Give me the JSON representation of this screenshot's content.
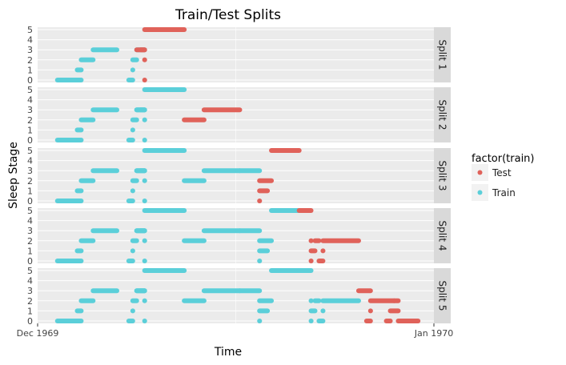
{
  "chart_data": {
    "type": "scatter",
    "title": "Train/Test Splits",
    "xlabel": "Time",
    "ylabel": "Sleep Stage",
    "x_ticks": [
      "Dec 1969",
      "Jan 1970"
    ],
    "y_ticks": [
      "0",
      "1",
      "2",
      "3",
      "4",
      "5"
    ],
    "ylim": [
      0,
      5
    ],
    "grid": true,
    "legend_position": "right",
    "legend_title": "factor(train)",
    "legend_entries": [
      "Test",
      "Train"
    ],
    "colors": {
      "Test": "#E0625A",
      "Train": "#5BCFD9",
      "panel_bg": "#EBEBEB",
      "strip_bg": "#D9D9D9"
    },
    "facets": [
      "Split 1",
      "Split 2",
      "Split 3",
      "Split 4",
      "Split 5"
    ],
    "base_segments": [
      {
        "stage": 0,
        "x0": 0.05,
        "x1": 0.11
      },
      {
        "stage": 1,
        "x0": 0.1,
        "x1": 0.11
      },
      {
        "stage": 2,
        "x0": 0.11,
        "x1": 0.14
      },
      {
        "stage": 3,
        "x0": 0.14,
        "x1": 0.2
      },
      {
        "stage": 0,
        "x0": 0.23,
        "x1": 0.24
      },
      {
        "stage": 1,
        "x0": 0.24,
        "x1": 0.24
      },
      {
        "stage": 2,
        "x0": 0.24,
        "x1": 0.25
      },
      {
        "stage": 3,
        "x0": 0.25,
        "x1": 0.27
      },
      {
        "stage": 3,
        "x0": 0.25,
        "x1": 0.27
      },
      {
        "stage": 0,
        "x0": 0.27,
        "x1": 0.27
      },
      {
        "stage": 2,
        "x0": 0.27,
        "x1": 0.27
      },
      {
        "stage": 3,
        "x0": 0.26,
        "x1": 0.27
      },
      {
        "stage": 5,
        "x0": 0.27,
        "x1": 0.37
      },
      {
        "stage": 2,
        "x0": 0.37,
        "x1": 0.42
      },
      {
        "stage": 3,
        "x0": 0.42,
        "x1": 0.51
      },
      {
        "stage": 3,
        "x0": 0.51,
        "x1": 0.56
      },
      {
        "stage": 2,
        "x0": 0.56,
        "x1": 0.59
      },
      {
        "stage": 0,
        "x0": 0.56,
        "x1": 0.56
      },
      {
        "stage": 1,
        "x0": 0.56,
        "x1": 0.58
      },
      {
        "stage": 5,
        "x0": 0.59,
        "x1": 0.66
      },
      {
        "stage": 5,
        "x0": 0.66,
        "x1": 0.69
      },
      {
        "stage": 2,
        "x0": 0.69,
        "x1": 0.69
      },
      {
        "stage": 0,
        "x0": 0.69,
        "x1": 0.69
      },
      {
        "stage": 1,
        "x0": 0.69,
        "x1": 0.7
      },
      {
        "stage": 2,
        "x0": 0.7,
        "x1": 0.71
      },
      {
        "stage": 0,
        "x0": 0.71,
        "x1": 0.72
      },
      {
        "stage": 1,
        "x0": 0.72,
        "x1": 0.72
      },
      {
        "stage": 2,
        "x0": 0.72,
        "x1": 0.81
      },
      {
        "stage": 3,
        "x0": 0.81,
        "x1": 0.84
      },
      {
        "stage": 0,
        "x0": 0.83,
        "x1": 0.84
      },
      {
        "stage": 1,
        "x0": 0.84,
        "x1": 0.84
      },
      {
        "stage": 2,
        "x0": 0.84,
        "x1": 0.9
      },
      {
        "stage": 2,
        "x0": 0.9,
        "x1": 0.91
      },
      {
        "stage": 0,
        "x0": 0.88,
        "x1": 0.89
      },
      {
        "stage": 1,
        "x0": 0.89,
        "x1": 0.91
      },
      {
        "stage": 0,
        "x0": 0.91,
        "x1": 0.96
      }
    ],
    "test_segment_indices": [
      [
        8,
        9,
        10,
        11,
        12
      ],
      [
        13,
        14
      ],
      [
        16,
        17,
        18,
        19
      ],
      [
        20,
        21,
        22,
        23,
        24,
        25,
        26,
        27
      ],
      [
        28,
        29,
        30,
        31,
        32,
        33,
        34,
        35
      ]
    ],
    "train_segment_count": [
      8,
      13,
      16,
      20,
      28
    ]
  }
}
